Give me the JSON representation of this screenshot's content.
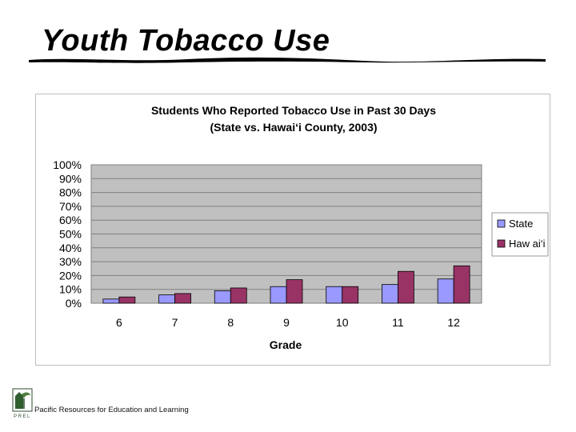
{
  "slide": {
    "title": "Youth Tobacco Use",
    "footer": "Pacific Resources for Education and Learning",
    "logo_text": "PREL"
  },
  "colors": {
    "plot_background": "#c0c0c0",
    "grid": "#808080",
    "state": "#9999ff",
    "hawaii": "#993366"
  },
  "chart_data": {
    "type": "bar",
    "title": "Students Who Reported Tobacco Use in Past 30 Days",
    "subtitle": "(State vs. Hawai‘i County, 2003)",
    "xlabel": "Grade",
    "ylabel": "",
    "categories": [
      "6",
      "7",
      "8",
      "9",
      "10",
      "11",
      "12"
    ],
    "series": [
      {
        "name": "State",
        "values": [
          3,
          6,
          9,
          12,
          12,
          13.5,
          17.5
        ]
      },
      {
        "name": "Haw ai‘i",
        "values": [
          4.5,
          7,
          11,
          17,
          12,
          23,
          27
        ]
      }
    ],
    "ylim": [
      0,
      100
    ],
    "yticks": [
      "0%",
      "10%",
      "20%",
      "30%",
      "40%",
      "50%",
      "60%",
      "70%",
      "80%",
      "90%",
      "100%"
    ],
    "grid": true,
    "legend": "right"
  }
}
